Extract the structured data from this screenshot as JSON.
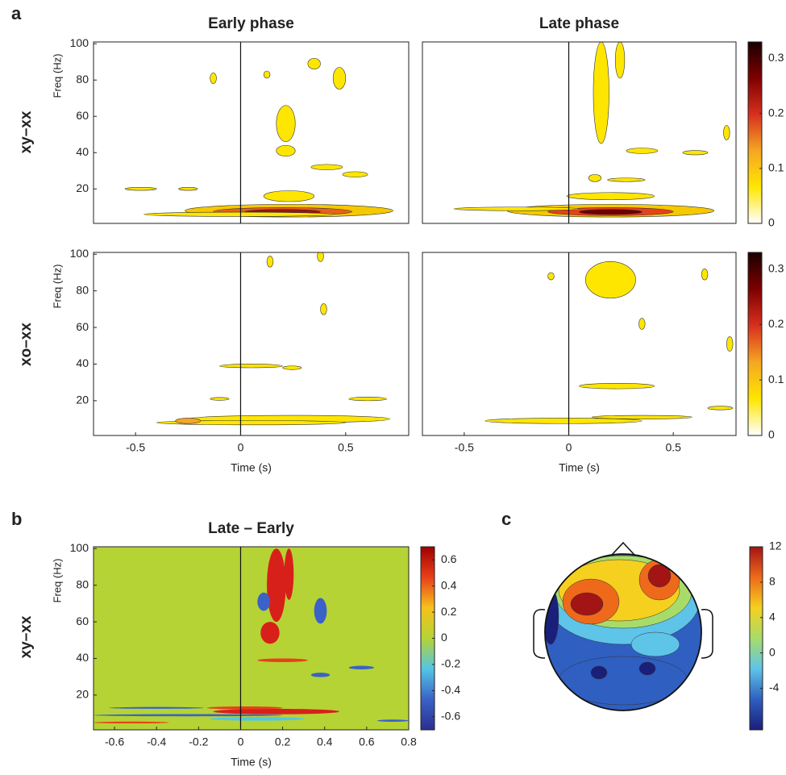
{
  "figure": {
    "panel_labels": [
      "a",
      "b",
      "c"
    ],
    "row_labels": [
      "xy–xx",
      "xo–xx",
      "xy–xx"
    ]
  },
  "chart_data": [
    {
      "type": "heatmap",
      "title": "Early phase",
      "ylabel": "Freq (Hz)",
      "xlim": [
        -0.7,
        0.8
      ],
      "ylim": [
        1,
        101
      ],
      "yticks": [
        20,
        40,
        60,
        80,
        100
      ]
    },
    {
      "type": "heatmap",
      "title": "Late phase",
      "xlim": [
        -0.7,
        0.8
      ],
      "ylim": [
        1,
        101
      ],
      "colorbar": {
        "lim": [
          0,
          0.33
        ],
        "ticks": [
          0,
          0.1,
          0.2,
          0.3
        ],
        "colormap": [
          "#ffffff",
          "#ffe600",
          "#f5a623",
          "#d7301f",
          "#7f0000",
          "#1a0000"
        ]
      }
    },
    {
      "type": "heatmap",
      "xlabel": "Time (s)",
      "ylabel": "Freq (Hz)",
      "xlim": [
        -0.7,
        0.8
      ],
      "ylim": [
        1,
        101
      ],
      "xticks": [
        -0.5,
        0,
        0.5
      ],
      "yticks": [
        20,
        40,
        60,
        80,
        100
      ]
    },
    {
      "type": "heatmap",
      "xlabel": "Time (s)",
      "xlim": [
        -0.7,
        0.8
      ],
      "ylim": [
        1,
        101
      ],
      "xticks": [
        -0.5,
        0,
        0.5
      ],
      "colorbar": {
        "lim": [
          0,
          0.33
        ],
        "ticks": [
          0,
          0.1,
          0.2,
          0.3
        ],
        "colormap": [
          "#ffffff",
          "#ffe600",
          "#f5a623",
          "#d7301f",
          "#7f0000",
          "#1a0000"
        ]
      }
    },
    {
      "type": "heatmap",
      "title": "Late – Early",
      "xlabel": "Time (s)",
      "ylabel": "Freq (Hz)",
      "xlim": [
        -0.7,
        0.8
      ],
      "ylim": [
        1,
        101
      ],
      "xticks": [
        -0.6,
        -0.4,
        -0.2,
        0,
        0.2,
        0.4,
        0.6,
        0.8
      ],
      "yticks": [
        20,
        40,
        60,
        80,
        100
      ],
      "colorbar": {
        "lim": [
          -0.7,
          0.7
        ],
        "ticks": [
          -0.6,
          -0.4,
          -0.2,
          0,
          0.2,
          0.4,
          0.6
        ],
        "colormap": [
          "#2b2f8f",
          "#3a62c8",
          "#54c6e3",
          "#b5d334",
          "#f5c21b",
          "#e8401a",
          "#a00000"
        ]
      }
    },
    {
      "type": "topomap",
      "colorbar": {
        "lim": [
          -8.7,
          12
        ],
        "ticks": [
          -4,
          0,
          4,
          8,
          12
        ],
        "colormap": [
          "#1a1f7a",
          "#2f5fc0",
          "#5ec4e8",
          "#a8dc6a",
          "#f5d01e",
          "#ee6a1a",
          "#a31414"
        ]
      }
    }
  ]
}
